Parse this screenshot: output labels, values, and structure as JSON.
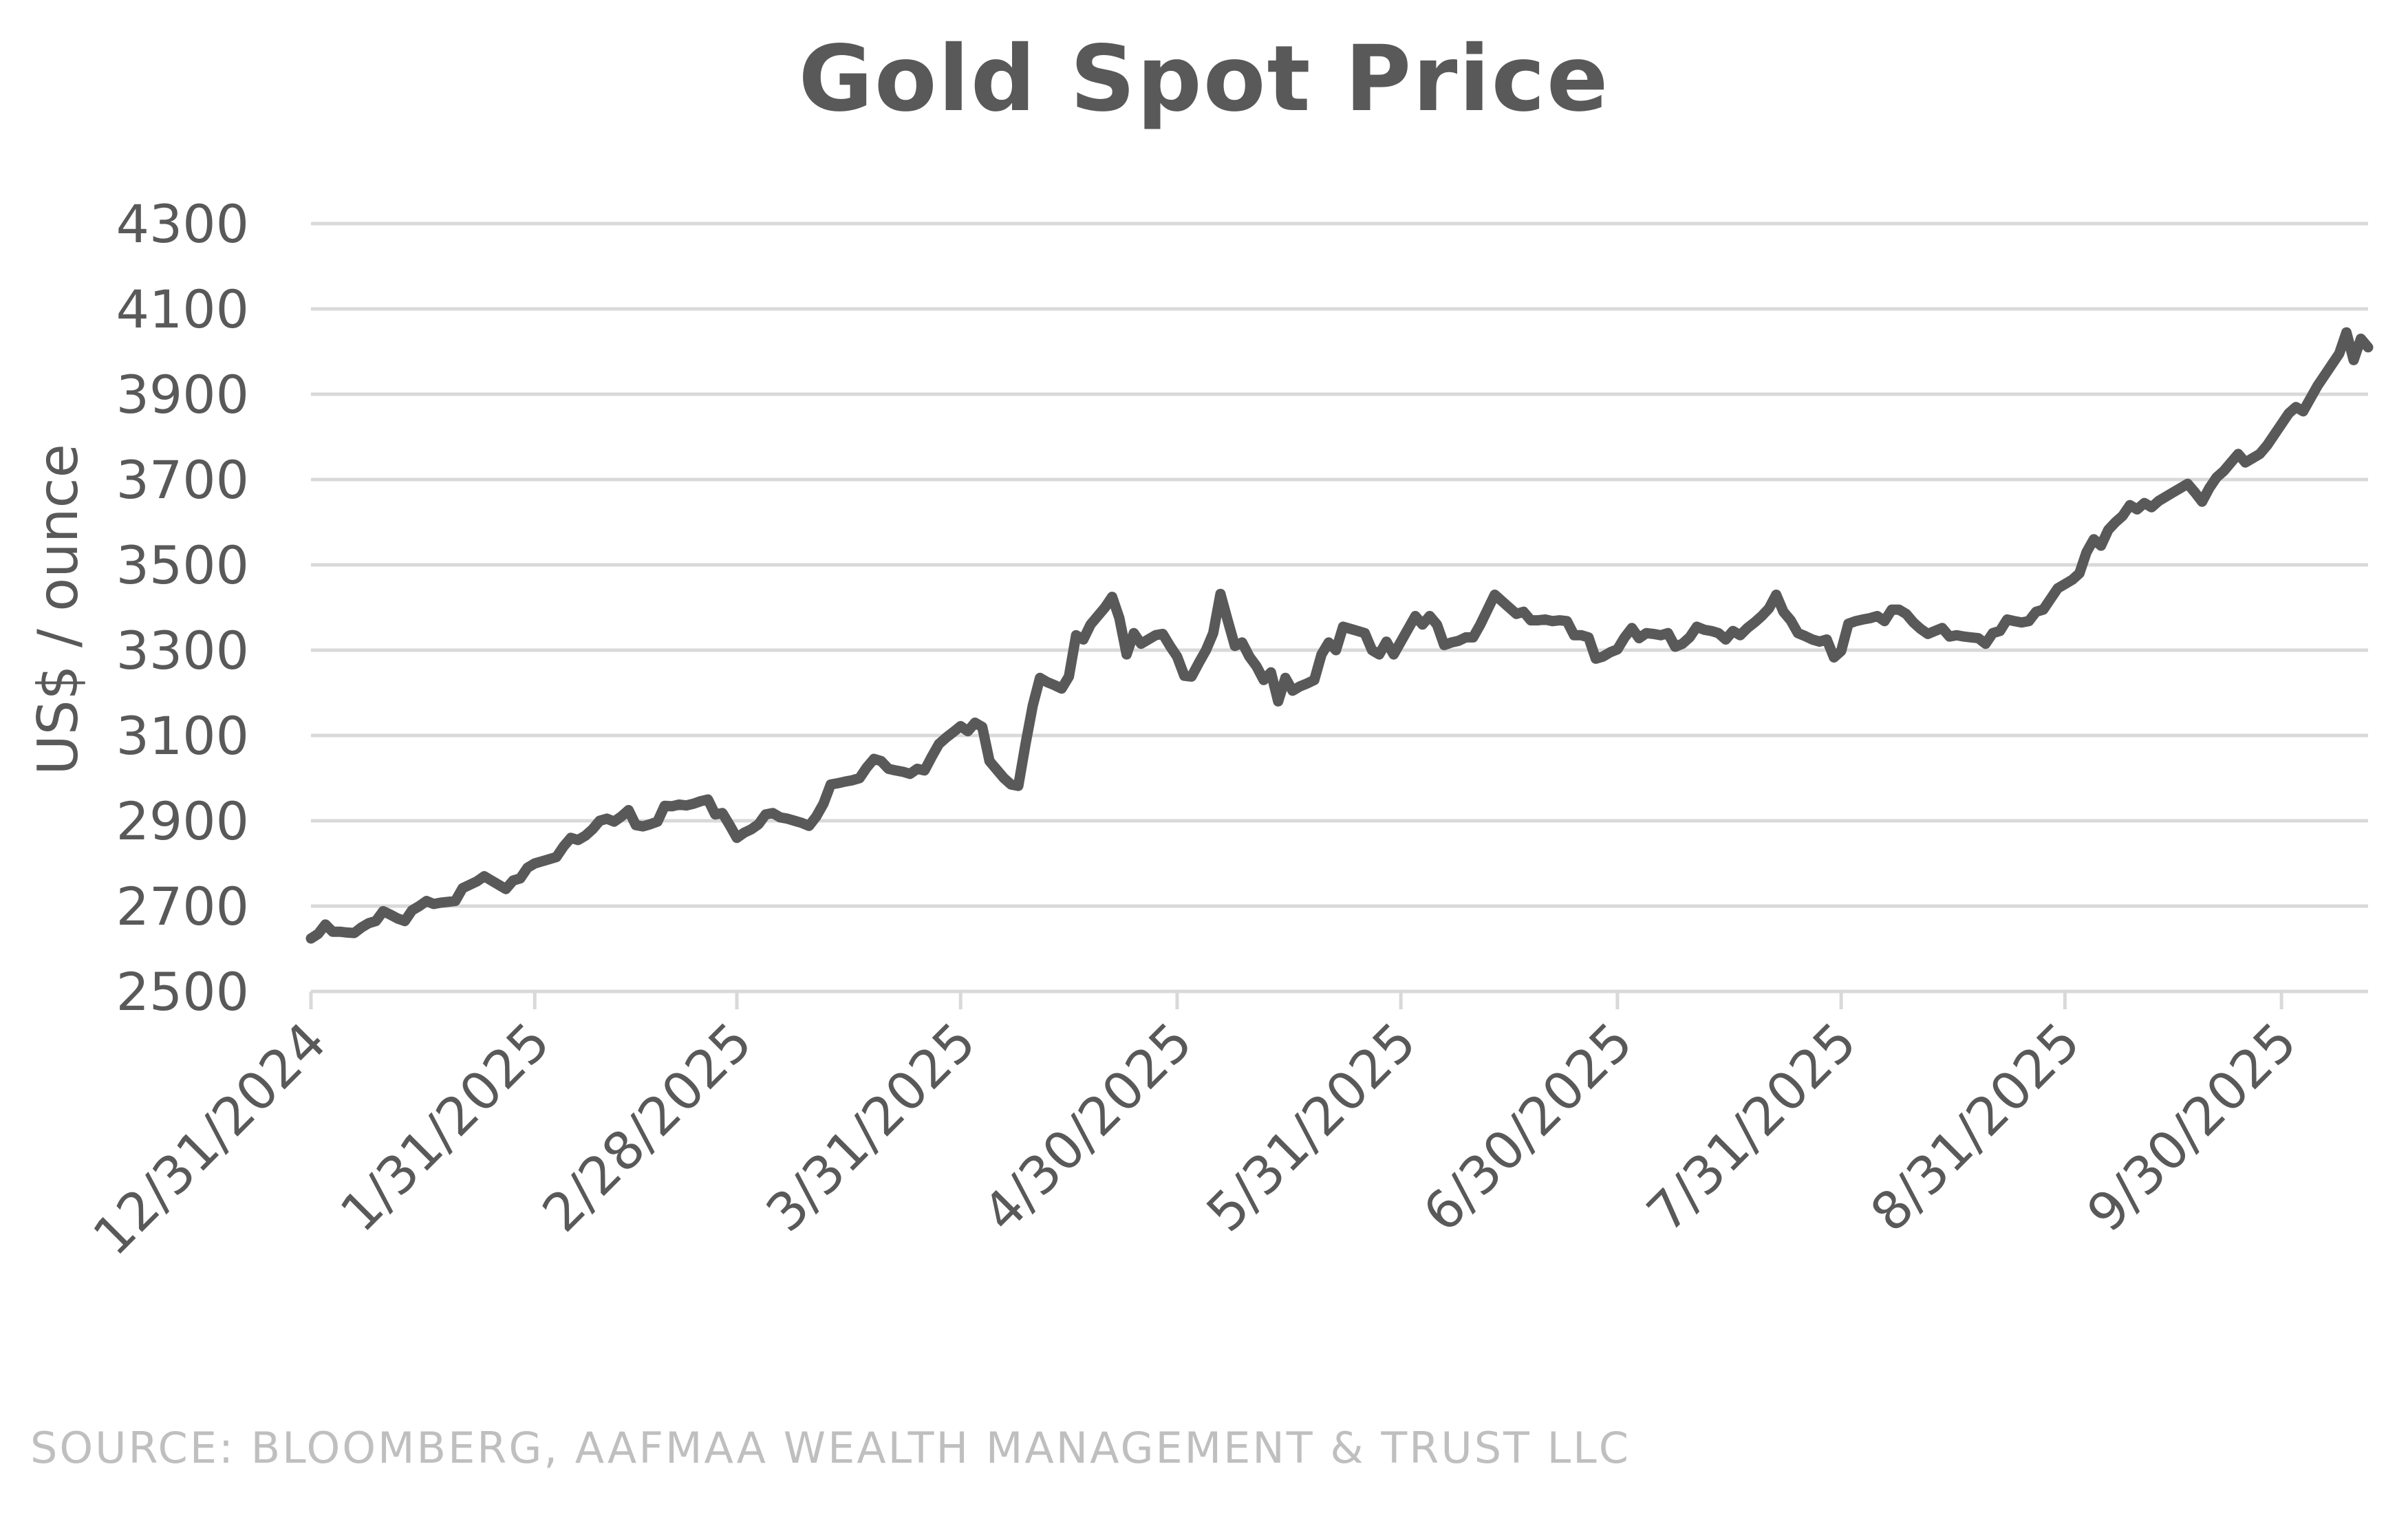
{
  "chart_data": {
    "type": "line",
    "title": "Gold Spot Price",
    "xlabel": "",
    "ylabel": "US$ / ounce",
    "ylim": [
      2500,
      4300
    ],
    "yticks": [
      2500,
      2700,
      2900,
      3100,
      3300,
      3500,
      3700,
      3900,
      4100,
      4300
    ],
    "xlim": [
      0,
      285
    ],
    "xticks": [
      {
        "label": "12/31/2024",
        "day": 0
      },
      {
        "label": "1/31/2025",
        "day": 31
      },
      {
        "label": "2/28/2025",
        "day": 59
      },
      {
        "label": "3/31/2025",
        "day": 90
      },
      {
        "label": "4/30/2025",
        "day": 120
      },
      {
        "label": "5/31/2025",
        "day": 151
      },
      {
        "label": "6/30/2025",
        "day": 181
      },
      {
        "label": "7/31/2025",
        "day": 212
      },
      {
        "label": "8/31/2025",
        "day": 243
      },
      {
        "label": "9/30/2025",
        "day": 273
      }
    ],
    "grid": true,
    "legend": "none",
    "series": [
      {
        "name": "Gold Spot Price",
        "color": "#595959",
        "points": [
          [
            0,
            2624
          ],
          [
            1,
            2635
          ],
          [
            2,
            2657
          ],
          [
            3,
            2640
          ],
          [
            4,
            2640
          ],
          [
            5,
            2638
          ],
          [
            6,
            2637
          ],
          [
            7,
            2650
          ],
          [
            8,
            2660
          ],
          [
            9,
            2665
          ],
          [
            10,
            2688
          ],
          [
            11,
            2680
          ],
          [
            12,
            2671
          ],
          [
            13,
            2665
          ],
          [
            14,
            2690
          ],
          [
            15,
            2700
          ],
          [
            16,
            2712
          ],
          [
            17,
            2705
          ],
          [
            18,
            2708
          ],
          [
            19,
            2710
          ],
          [
            20,
            2712
          ],
          [
            21,
            2742
          ],
          [
            22,
            2750
          ],
          [
            23,
            2758
          ],
          [
            24,
            2770
          ],
          [
            25,
            2760
          ],
          [
            26,
            2750
          ],
          [
            27,
            2740
          ],
          [
            28,
            2760
          ],
          [
            29,
            2765
          ],
          [
            30,
            2790
          ],
          [
            31,
            2800
          ],
          [
            32,
            2805
          ],
          [
            33,
            2810
          ],
          [
            34,
            2815
          ],
          [
            35,
            2840
          ],
          [
            36,
            2860
          ],
          [
            37,
            2855
          ],
          [
            38,
            2865
          ],
          [
            39,
            2880
          ],
          [
            40,
            2900
          ],
          [
            41,
            2905
          ],
          [
            42,
            2898
          ],
          [
            43,
            2910
          ],
          [
            44,
            2925
          ],
          [
            45,
            2890
          ],
          [
            46,
            2887
          ],
          [
            47,
            2892
          ],
          [
            48,
            2898
          ],
          [
            49,
            2935
          ],
          [
            50,
            2934
          ],
          [
            51,
            2938
          ],
          [
            52,
            2936
          ],
          [
            53,
            2940
          ],
          [
            54,
            2946
          ],
          [
            55,
            2950
          ],
          [
            56,
            2915
          ],
          [
            57,
            2918
          ],
          [
            58,
            2890
          ],
          [
            59,
            2860
          ],
          [
            60,
            2872
          ],
          [
            61,
            2880
          ],
          [
            62,
            2892
          ],
          [
            63,
            2915
          ],
          [
            64,
            2918
          ],
          [
            65,
            2908
          ],
          [
            66,
            2905
          ],
          [
            67,
            2900
          ],
          [
            68,
            2895
          ],
          [
            69,
            2888
          ],
          [
            70,
            2910
          ],
          [
            71,
            2940
          ],
          [
            72,
            2985
          ],
          [
            73,
            2988
          ],
          [
            74,
            2992
          ],
          [
            75,
            2995
          ],
          [
            76,
            3000
          ],
          [
            77,
            3025
          ],
          [
            78,
            3045
          ],
          [
            79,
            3040
          ],
          [
            80,
            3022
          ],
          [
            81,
            3018
          ],
          [
            82,
            3015
          ],
          [
            83,
            3010
          ],
          [
            84,
            3022
          ],
          [
            85,
            3018
          ],
          [
            86,
            3050
          ],
          [
            87,
            3080
          ],
          [
            88,
            3095
          ],
          [
            89,
            3108
          ],
          [
            90,
            3122
          ],
          [
            91,
            3110
          ],
          [
            92,
            3130
          ],
          [
            93,
            3120
          ],
          [
            94,
            3040
          ],
          [
            95,
            3020
          ],
          [
            96,
            3000
          ],
          [
            97,
            2985
          ],
          [
            98,
            2982
          ],
          [
            99,
            3080
          ],
          [
            100,
            3170
          ],
          [
            101,
            3235
          ],
          [
            102,
            3225
          ],
          [
            103,
            3218
          ],
          [
            104,
            3210
          ],
          [
            105,
            3238
          ],
          [
            106,
            3335
          ],
          [
            107,
            3325
          ],
          [
            108,
            3360
          ],
          [
            109,
            3380
          ],
          [
            110,
            3400
          ],
          [
            111,
            3425
          ],
          [
            112,
            3375
          ],
          [
            113,
            3290
          ],
          [
            114,
            3340
          ],
          [
            115,
            3315
          ],
          [
            116,
            3325
          ],
          [
            117,
            3335
          ],
          [
            118,
            3338
          ],
          [
            119,
            3310
          ],
          [
            120,
            3285
          ],
          [
            121,
            3240
          ],
          [
            122,
            3238
          ],
          [
            123,
            3270
          ],
          [
            124,
            3300
          ],
          [
            125,
            3340
          ],
          [
            126,
            3432
          ],
          [
            127,
            3370
          ],
          [
            128,
            3310
          ],
          [
            129,
            3318
          ],
          [
            130,
            3285
          ],
          [
            131,
            3262
          ],
          [
            132,
            3230
          ],
          [
            133,
            3248
          ],
          [
            134,
            3180
          ],
          [
            135,
            3235
          ],
          [
            136,
            3205
          ],
          [
            137,
            3215
          ],
          [
            138,
            3222
          ],
          [
            139,
            3230
          ],
          [
            140,
            3290
          ],
          [
            141,
            3318
          ],
          [
            142,
            3300
          ],
          [
            143,
            3355
          ],
          [
            144,
            3350
          ],
          [
            145,
            3345
          ],
          [
            146,
            3340
          ],
          [
            147,
            3300
          ],
          [
            148,
            3290
          ],
          [
            149,
            3320
          ],
          [
            150,
            3290
          ],
          [
            151,
            3320
          ],
          [
            152,
            3350
          ],
          [
            153,
            3380
          ],
          [
            154,
            3360
          ],
          [
            155,
            3380
          ],
          [
            156,
            3360
          ],
          [
            157,
            3312
          ],
          [
            158,
            3318
          ],
          [
            159,
            3322
          ],
          [
            160,
            3330
          ],
          [
            161,
            3330
          ],
          [
            162,
            3360
          ],
          [
            163,
            3395
          ],
          [
            164,
            3430
          ],
          [
            165,
            3415
          ],
          [
            166,
            3400
          ],
          [
            167,
            3385
          ],
          [
            168,
            3390
          ],
          [
            169,
            3370
          ],
          [
            170,
            3370
          ],
          [
            171,
            3372
          ],
          [
            172,
            3368
          ],
          [
            173,
            3370
          ],
          [
            174,
            3368
          ],
          [
            175,
            3335
          ],
          [
            176,
            3335
          ],
          [
            177,
            3330
          ],
          [
            178,
            3280
          ],
          [
            179,
            3285
          ],
          [
            180,
            3295
          ],
          [
            181,
            3302
          ],
          [
            182,
            3330
          ],
          [
            183,
            3352
          ],
          [
            184,
            3328
          ],
          [
            185,
            3340
          ],
          [
            186,
            3338
          ],
          [
            187,
            3335
          ],
          [
            188,
            3340
          ],
          [
            189,
            3308
          ],
          [
            190,
            3315
          ],
          [
            191,
            3330
          ],
          [
            192,
            3355
          ],
          [
            193,
            3348
          ],
          [
            194,
            3345
          ],
          [
            195,
            3340
          ],
          [
            196,
            3325
          ],
          [
            197,
            3345
          ],
          [
            198,
            3335
          ],
          [
            199,
            3352
          ],
          [
            200,
            3365
          ],
          [
            201,
            3380
          ],
          [
            202,
            3398
          ],
          [
            203,
            3430
          ],
          [
            204,
            3390
          ],
          [
            205,
            3370
          ],
          [
            206,
            3340
          ],
          [
            207,
            3333
          ],
          [
            208,
            3325
          ],
          [
            209,
            3320
          ],
          [
            210,
            3325
          ],
          [
            211,
            3283
          ],
          [
            212,
            3298
          ],
          [
            213,
            3362
          ],
          [
            214,
            3368
          ],
          [
            215,
            3372
          ],
          [
            216,
            3375
          ],
          [
            217,
            3380
          ],
          [
            218,
            3368
          ],
          [
            219,
            3395
          ],
          [
            220,
            3395
          ],
          [
            221,
            3385
          ],
          [
            222,
            3365
          ],
          [
            223,
            3350
          ],
          [
            224,
            3338
          ],
          [
            225,
            3345
          ],
          [
            226,
            3352
          ],
          [
            227,
            3332
          ],
          [
            228,
            3335
          ],
          [
            229,
            3332
          ],
          [
            230,
            3330
          ],
          [
            231,
            3328
          ],
          [
            232,
            3315
          ],
          [
            233,
            3340
          ],
          [
            234,
            3345
          ],
          [
            235,
            3372
          ],
          [
            236,
            3368
          ],
          [
            237,
            3365
          ],
          [
            238,
            3368
          ],
          [
            239,
            3390
          ],
          [
            240,
            3395
          ],
          [
            241,
            3420
          ],
          [
            242,
            3445
          ],
          [
            243,
            3455
          ],
          [
            244,
            3465
          ],
          [
            245,
            3480
          ],
          [
            246,
            3530
          ],
          [
            247,
            3560
          ],
          [
            248,
            3545
          ],
          [
            249,
            3582
          ],
          [
            250,
            3600
          ],
          [
            251,
            3615
          ],
          [
            252,
            3640
          ],
          [
            253,
            3630
          ],
          [
            254,
            3645
          ],
          [
            255,
            3635
          ],
          [
            256,
            3650
          ],
          [
            257,
            3660
          ],
          [
            258,
            3670
          ],
          [
            259,
            3680
          ],
          [
            260,
            3690
          ],
          [
            261,
            3670
          ],
          [
            262,
            3648
          ],
          [
            263,
            3680
          ],
          [
            264,
            3705
          ],
          [
            265,
            3720
          ],
          [
            266,
            3740
          ],
          [
            267,
            3760
          ],
          [
            268,
            3740
          ],
          [
            269,
            3750
          ],
          [
            270,
            3760
          ],
          [
            271,
            3780
          ],
          [
            272,
            3805
          ],
          [
            273,
            3830
          ],
          [
            274,
            3855
          ],
          [
            275,
            3870
          ],
          [
            276,
            3860
          ],
          [
            277,
            3890
          ],
          [
            278,
            3920
          ],
          [
            279,
            3945
          ],
          [
            280,
            3970
          ],
          [
            281,
            3995
          ],
          [
            282,
            4045
          ],
          [
            283,
            3980
          ],
          [
            284,
            4030
          ],
          [
            285,
            4010
          ]
        ]
      }
    ],
    "source": "SOURCE: BLOOMBERG, AAFMAA WEALTH MANAGEMENT & TRUST LLC"
  }
}
